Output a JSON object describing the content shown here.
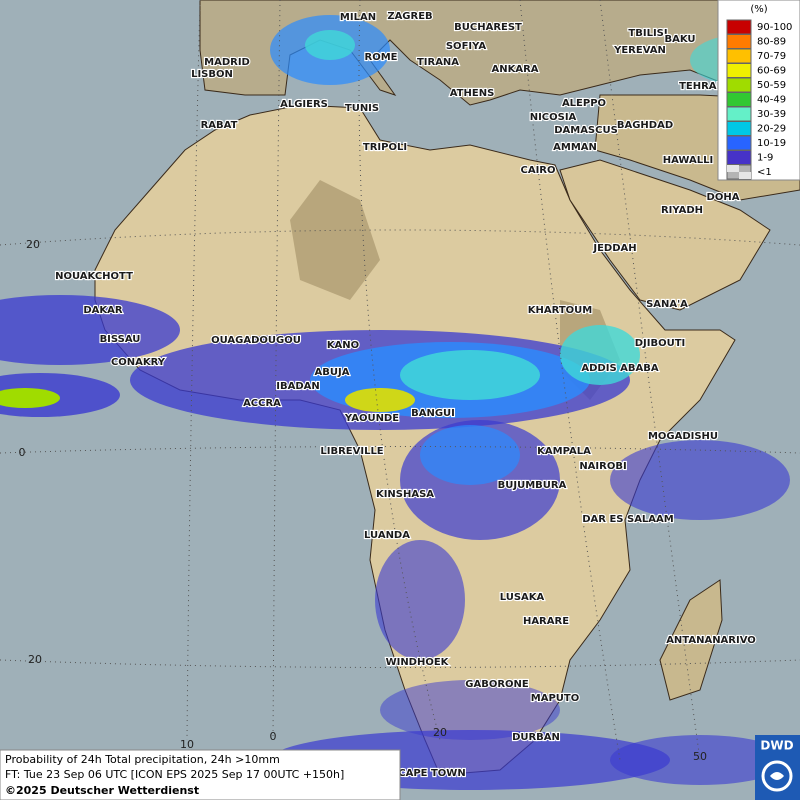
{
  "legend": {
    "title": "(%)",
    "items": [
      {
        "label": "90-100",
        "color": "#c80000"
      },
      {
        "label": "80-89",
        "color": "#ff7b00"
      },
      {
        "label": "70-79",
        "color": "#ffc000"
      },
      {
        "label": "60-69",
        "color": "#f0f000"
      },
      {
        "label": "50-59",
        "color": "#a0dc00"
      },
      {
        "label": "40-49",
        "color": "#32c832"
      },
      {
        "label": "30-39",
        "color": "#64f0c8"
      },
      {
        "label": "20-29",
        "color": "#00c8e6"
      },
      {
        "label": "10-19",
        "color": "#2864ff"
      },
      {
        "label": "1-9",
        "color": "#4632c8"
      },
      {
        "label": "<1",
        "color": "#b4b4b4"
      }
    ]
  },
  "cities": [
    "MILAN",
    "ZAGREB",
    "BUCHAREST",
    "TBILISI",
    "BAKU",
    "MADRID",
    "ROME",
    "SOFIYA",
    "YEREVAN",
    "LISBON",
    "TIRANA",
    "ANKARA",
    "TEHRAN",
    "ATHENS",
    "ALGIERS",
    "TUNIS",
    "ALEPPO",
    "RABAT",
    "NICOSIA",
    "BAGHDAD",
    "DAMASCUS",
    "TRIPOLI",
    "AMMAN",
    "HAWALLI",
    "CAIRO",
    "DOHA",
    "RIYADH",
    "JEDDAH",
    "NOUAKCHOTT",
    "SANA'A",
    "DAKAR",
    "KHARTOUM",
    "BISSAU",
    "OUAGADOUGOU",
    "DJIBOUTI",
    "KANO",
    "CONAKRY",
    "ABUJA",
    "ADDIS ABABA",
    "IBADAN",
    "ACCRA",
    "YAOUNDE",
    "BANGUI",
    "MOGADISHU",
    "LIBREVILLE",
    "KAMPALA",
    "NAIROBI",
    "BUJUMBURA",
    "KINSHASA",
    "DAR ES SALAAM",
    "LUANDA",
    "LUSAKA",
    "HARARE",
    "ANTANANARIVO",
    "WINDHOEK",
    "GABORONE",
    "MAPUTO",
    "DURBAN",
    "CAPE TOWN"
  ],
  "grid_labels": {
    "latitude": [
      "20",
      "0",
      "20"
    ],
    "longitude": [
      "10",
      "0",
      "20",
      "50"
    ]
  },
  "caption": {
    "line1": "Probability of 24h Total precipitation, 24h >10mm",
    "line2": "FT: Tue 23 Sep 06 UTC [ICON EPS 2025 Sep 17 00UTC +150h]",
    "line3": "©2025 Deutscher Wetterdienst"
  },
  "logo": "DWD"
}
